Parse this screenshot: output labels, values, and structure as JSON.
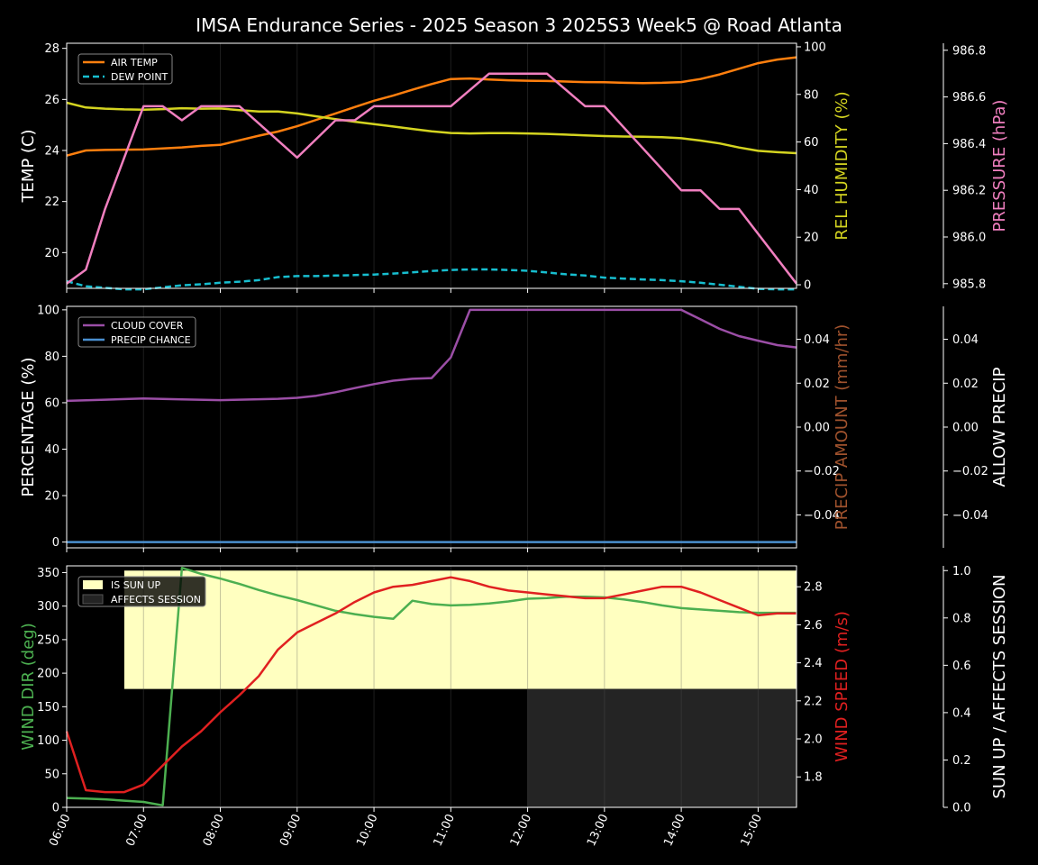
{
  "title": "IMSA Endurance Series - 2025 Season 3 2025S3 Week5 @ Road Atlanta",
  "colors": {
    "background": "#000000",
    "axis": "#ffffff",
    "air_temp": "#ff7f0e",
    "dew_point": "#17becf",
    "humidity": "#d4d420",
    "pressure": "#f07fbf",
    "cloud_cover": "#9b4ea6",
    "precip_chance": "#4a8fd0",
    "precip_amount_label": "#a0522d",
    "wind_dir": "#4caf50",
    "wind_speed": "#e02020",
    "sun_up": "#ffffc0",
    "affects_session": "#242424"
  },
  "chart_data": [
    {
      "type": "line",
      "panel": "weather",
      "ylabel": "TEMP (C)",
      "ylabel2": "REL HUMIDITY (%)",
      "ylabel3": "PRESSURE (hPa)",
      "ylim": [
        18.6,
        28.2
      ],
      "ylim2": [
        -1.5,
        101.5
      ],
      "ylim3": [
        985.78,
        986.83
      ],
      "yticks": [
        "20",
        "22",
        "24",
        "26",
        "28"
      ],
      "yticks2": [
        "0",
        "20",
        "40",
        "60",
        "80",
        "100"
      ],
      "yticks3": [
        "985.8",
        "986.0",
        "986.2",
        "986.4",
        "986.6",
        "986.8"
      ],
      "legend": [
        "AIR TEMP",
        "DEW POINT"
      ],
      "legend_position": "top-left",
      "series": [
        {
          "name": "AIR TEMP",
          "axis": "left",
          "style": "solid",
          "x": [
            6.0,
            6.25,
            6.5,
            6.75,
            7.0,
            7.25,
            7.5,
            7.75,
            8.0,
            8.25,
            8.5,
            8.75,
            9.0,
            9.25,
            9.5,
            9.75,
            10.0,
            10.25,
            10.5,
            10.75,
            11.0,
            11.25,
            11.5,
            11.75,
            12.0,
            12.25,
            12.5,
            12.75,
            13.0,
            13.25,
            13.5,
            13.75,
            14.0,
            14.25,
            14.5,
            14.75,
            15.0,
            15.25,
            15.5
          ],
          "values": [
            23.8,
            24.0,
            24.02,
            24.03,
            24.04,
            24.08,
            24.12,
            24.18,
            24.22,
            24.4,
            24.58,
            24.74,
            24.95,
            25.2,
            25.45,
            25.7,
            25.95,
            26.15,
            26.38,
            26.6,
            26.8,
            26.82,
            26.78,
            26.75,
            26.73,
            26.72,
            26.7,
            26.68,
            26.67,
            26.65,
            26.64,
            26.65,
            26.68,
            26.8,
            26.98,
            27.2,
            27.42,
            27.56,
            27.65
          ]
        },
        {
          "name": "DEW POINT",
          "axis": "left",
          "style": "dashed",
          "x": [
            6.0,
            6.25,
            6.5,
            6.75,
            7.0,
            7.25,
            7.5,
            7.75,
            8.0,
            8.25,
            8.5,
            8.75,
            9.0,
            9.25,
            9.5,
            9.75,
            10.0,
            10.25,
            10.5,
            10.75,
            11.0,
            11.25,
            11.5,
            11.75,
            12.0,
            12.25,
            12.5,
            12.75,
            13.0,
            13.25,
            13.5,
            13.75,
            14.0,
            14.25,
            14.5,
            14.75,
            15.0,
            15.25,
            15.5
          ],
          "values": [
            18.88,
            18.68,
            18.62,
            18.56,
            18.56,
            18.64,
            18.72,
            18.76,
            18.82,
            18.86,
            18.92,
            19.04,
            19.08,
            19.08,
            19.1,
            19.12,
            19.14,
            19.18,
            19.23,
            19.28,
            19.32,
            19.34,
            19.34,
            19.32,
            19.29,
            19.22,
            19.15,
            19.1,
            19.02,
            18.98,
            18.95,
            18.92,
            18.88,
            18.82,
            18.74,
            18.66,
            18.58,
            18.56,
            18.56
          ]
        },
        {
          "name": "REL HUMIDITY",
          "axis": "right",
          "style": "solid",
          "x": [
            6.0,
            6.25,
            6.5,
            6.75,
            7.0,
            7.25,
            7.5,
            7.75,
            8.0,
            8.25,
            8.5,
            8.75,
            9.0,
            9.25,
            9.5,
            9.75,
            10.0,
            10.25,
            10.5,
            10.75,
            11.0,
            11.25,
            11.5,
            11.75,
            12.0,
            12.25,
            12.5,
            12.75,
            13.0,
            13.25,
            13.5,
            13.75,
            14.0,
            14.25,
            14.5,
            14.75,
            15.0,
            15.25,
            15.5
          ],
          "values": [
            76.5,
            74.5,
            74.0,
            73.7,
            73.6,
            73.8,
            74.2,
            74.0,
            74.1,
            73.4,
            72.8,
            72.8,
            72.0,
            70.8,
            69.6,
            68.5,
            67.5,
            66.5,
            65.5,
            64.5,
            63.8,
            63.6,
            63.7,
            63.7,
            63.6,
            63.4,
            63.1,
            62.8,
            62.5,
            62.3,
            62.2,
            62.0,
            61.6,
            60.6,
            59.4,
            57.7,
            56.3,
            55.7,
            55.3
          ]
        },
        {
          "name": "PRESSURE",
          "axis": "right3",
          "style": "solid",
          "x": [
            6.0,
            6.25,
            6.5,
            6.75,
            7.0,
            7.25,
            7.5,
            7.75,
            8.0,
            8.25,
            9.0,
            9.5,
            9.75,
            10.0,
            11.0,
            11.5,
            12.0,
            12.25,
            12.75,
            13.0,
            14.0,
            14.25,
            14.5,
            14.75,
            15.5
          ],
          "values": [
            985.8,
            985.86,
            986.12,
            986.34,
            986.56,
            986.56,
            986.5,
            986.56,
            986.56,
            986.56,
            986.34,
            986.5,
            986.5,
            986.56,
            986.56,
            986.7,
            986.7,
            986.7,
            986.56,
            986.56,
            986.2,
            986.2,
            986.12,
            986.12,
            985.8
          ]
        }
      ]
    },
    {
      "type": "line",
      "panel": "precipitation",
      "ylabel": "PERCENTAGE (%)",
      "ylabel2": "PRECIP AMOUNT (mm/hr)",
      "ylabel3": "ALLOW PRECIP",
      "ylim": [
        -2.5,
        101.5
      ],
      "ylim2": [
        -0.055,
        0.055
      ],
      "ylim3": [
        -0.055,
        0.055
      ],
      "yticks": [
        "0",
        "20",
        "40",
        "60",
        "80",
        "100"
      ],
      "yticks2": [
        "−0.04",
        "−0.02",
        "0.00",
        "0.02",
        "0.04"
      ],
      "yticks3": [
        "−0.04",
        "−0.02",
        "0.00",
        "0.02",
        "0.04"
      ],
      "legend": [
        "CLOUD COVER",
        "PRECIP CHANCE"
      ],
      "legend_position": "top-left",
      "series": [
        {
          "name": "CLOUD COVER",
          "axis": "left",
          "style": "solid",
          "x": [
            6.0,
            6.5,
            7.0,
            7.5,
            8.0,
            8.5,
            8.75,
            9.0,
            9.25,
            9.5,
            9.75,
            10.0,
            10.25,
            10.5,
            10.75,
            11.0,
            11.25,
            12.0,
            13.0,
            14.0,
            14.25,
            14.5,
            14.75,
            15.0,
            15.25,
            15.5
          ],
          "values": [
            60.8,
            61.3,
            61.8,
            61.4,
            61.1,
            61.5,
            61.7,
            62.1,
            63.0,
            64.5,
            66.3,
            68.0,
            69.5,
            70.3,
            70.6,
            79.5,
            100.0,
            100.0,
            100.0,
            100.0,
            95.9,
            91.8,
            88.7,
            86.7,
            84.8,
            83.8
          ]
        },
        {
          "name": "PRECIP CHANCE",
          "axis": "left",
          "style": "solid",
          "x": [
            6.0,
            15.5
          ],
          "values": [
            0,
            0
          ]
        }
      ]
    },
    {
      "type": "line",
      "panel": "wind",
      "ylabel": "WIND DIR (deg)",
      "ylabel2": "WIND SPEED (m/s)",
      "ylabel3": "SUN UP / AFFECTS SESSION",
      "ylim": [
        0,
        360
      ],
      "ylim2": [
        1.64,
        2.91
      ],
      "ylim3": [
        0,
        1.02
      ],
      "yticks": [
        "0",
        "50",
        "100",
        "150",
        "200",
        "250",
        "300",
        "350"
      ],
      "yticks2": [
        "1.8",
        "2.0",
        "2.2",
        "2.4",
        "2.6",
        "2.8"
      ],
      "yticks3": [
        "0.0",
        "0.2",
        "0.4",
        "0.6",
        "0.8",
        "1.0"
      ],
      "legend": [
        "IS SUN UP",
        "AFFECTS SESSION"
      ],
      "legend_position": "top-left",
      "sun_up_spans": [
        [
          6.75,
          15.5
        ]
      ],
      "affects_session_spans": [
        [
          12.0,
          15.5
        ]
      ],
      "series": [
        {
          "name": "WIND DIR",
          "axis": "left",
          "style": "solid",
          "x": [
            6.0,
            6.25,
            6.5,
            6.75,
            7.0,
            7.25,
            7.5,
            7.75,
            8.0,
            8.25,
            8.5,
            8.75,
            9.0,
            9.25,
            9.5,
            9.75,
            10.0,
            10.25,
            10.5,
            10.75,
            11.0,
            11.25,
            11.5,
            11.75,
            12.0,
            12.25,
            12.5,
            12.75,
            13.0,
            13.25,
            13.5,
            13.75,
            14.0,
            14.25,
            14.5,
            14.75,
            15.0,
            15.25,
            15.5
          ],
          "values": [
            14,
            13,
            12,
            10,
            8,
            3,
            357,
            348,
            341,
            333,
            324,
            316,
            309,
            301,
            293,
            288,
            284,
            281,
            308,
            303,
            301,
            302,
            304,
            307,
            311,
            312,
            314,
            314,
            313,
            310,
            306,
            301,
            297,
            295,
            293,
            291,
            290,
            290,
            290
          ]
        },
        {
          "name": "WIND SPEED",
          "axis": "right",
          "style": "solid",
          "x": [
            6.0,
            6.25,
            6.5,
            6.75,
            7.0,
            7.25,
            7.5,
            7.75,
            8.0,
            8.25,
            8.5,
            8.75,
            9.0,
            9.25,
            9.5,
            9.75,
            10.0,
            10.25,
            10.5,
            10.75,
            11.0,
            11.25,
            11.5,
            11.75,
            12.0,
            12.25,
            12.5,
            12.75,
            13.0,
            13.25,
            13.5,
            13.75,
            14.0,
            14.25,
            14.5,
            14.75,
            15.0,
            15.25,
            15.5
          ],
          "values": [
            2.04,
            1.73,
            1.72,
            1.72,
            1.76,
            1.86,
            1.96,
            2.04,
            2.14,
            2.23,
            2.33,
            2.47,
            2.56,
            2.61,
            2.66,
            2.72,
            2.77,
            2.8,
            2.81,
            2.83,
            2.85,
            2.83,
            2.8,
            2.78,
            2.77,
            2.76,
            2.75,
            2.74,
            2.74,
            2.76,
            2.78,
            2.8,
            2.8,
            2.77,
            2.73,
            2.69,
            2.65,
            2.66,
            2.66
          ]
        }
      ]
    }
  ],
  "xaxis": {
    "ticks": [
      6,
      7,
      8,
      9,
      10,
      11,
      12,
      13,
      14,
      15
    ],
    "tick_labels": [
      "06:00",
      "07:00",
      "08:00",
      "09:00",
      "10:00",
      "11:00",
      "12:00",
      "13:00",
      "14:00",
      "15:00"
    ],
    "xlim": [
      6.0,
      15.5
    ]
  }
}
